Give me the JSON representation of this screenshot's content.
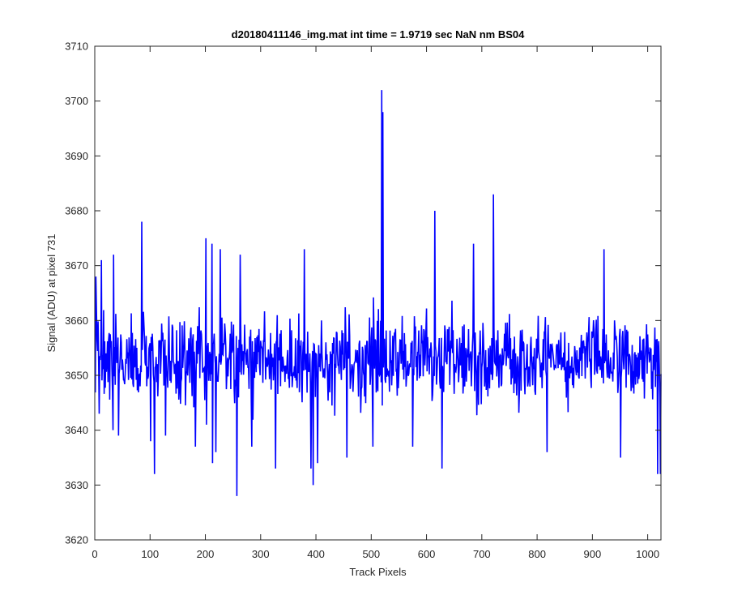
{
  "chart_data": {
    "type": "line",
    "title": "d20180411146_img.mat int time = 1.9719 sec  NaN nm BS04",
    "xlabel": "Track Pixels",
    "ylabel": "Signal (ADU) at pixel 731",
    "xlim": [
      0,
      1024
    ],
    "ylim": [
      3620,
      3710
    ],
    "xticks": [
      0,
      100,
      200,
      300,
      400,
      500,
      600,
      700,
      800,
      900,
      1000
    ],
    "yticks": [
      3620,
      3630,
      3640,
      3650,
      3660,
      3670,
      3680,
      3690,
      3700,
      3710
    ],
    "grid": false,
    "series": [
      {
        "color": "#0000ff",
        "baseline": 3653,
        "noise_range": [
          3638,
          3668
        ],
        "point_count": 1024,
        "notable_points": [
          {
            "x": 1,
            "y": 3668
          },
          {
            "x": 7,
            "y": 3643
          },
          {
            "x": 11,
            "y": 3671
          },
          {
            "x": 32,
            "y": 3640
          },
          {
            "x": 33,
            "y": 3672
          },
          {
            "x": 42,
            "y": 3639
          },
          {
            "x": 84,
            "y": 3678
          },
          {
            "x": 100,
            "y": 3638
          },
          {
            "x": 107,
            "y": 3632
          },
          {
            "x": 127,
            "y": 3639
          },
          {
            "x": 181,
            "y": 3637
          },
          {
            "x": 200,
            "y": 3675
          },
          {
            "x": 201,
            "y": 3641
          },
          {
            "x": 211,
            "y": 3674
          },
          {
            "x": 212,
            "y": 3634
          },
          {
            "x": 218,
            "y": 3636
          },
          {
            "x": 226,
            "y": 3673
          },
          {
            "x": 256,
            "y": 3628
          },
          {
            "x": 262,
            "y": 3672
          },
          {
            "x": 283,
            "y": 3637
          },
          {
            "x": 326,
            "y": 3633
          },
          {
            "x": 378,
            "y": 3673
          },
          {
            "x": 390,
            "y": 3633
          },
          {
            "x": 394,
            "y": 3630
          },
          {
            "x": 402,
            "y": 3675
          },
          {
            "x": 402,
            "y": 3634
          },
          {
            "x": 455,
            "y": 3635
          },
          {
            "x": 502,
            "y": 3637
          },
          {
            "x": 518,
            "y": 3702
          },
          {
            "x": 520,
            "y": 3698
          },
          {
            "x": 574,
            "y": 3637
          },
          {
            "x": 614,
            "y": 3680
          },
          {
            "x": 627,
            "y": 3633
          },
          {
            "x": 684,
            "y": 3674
          },
          {
            "x": 720,
            "y": 3683
          },
          {
            "x": 817,
            "y": 3636
          },
          {
            "x": 920,
            "y": 3673
          },
          {
            "x": 950,
            "y": 3635
          },
          {
            "x": 1017,
            "y": 3632
          },
          {
            "x": 1022,
            "y": 3632
          }
        ]
      }
    ]
  }
}
